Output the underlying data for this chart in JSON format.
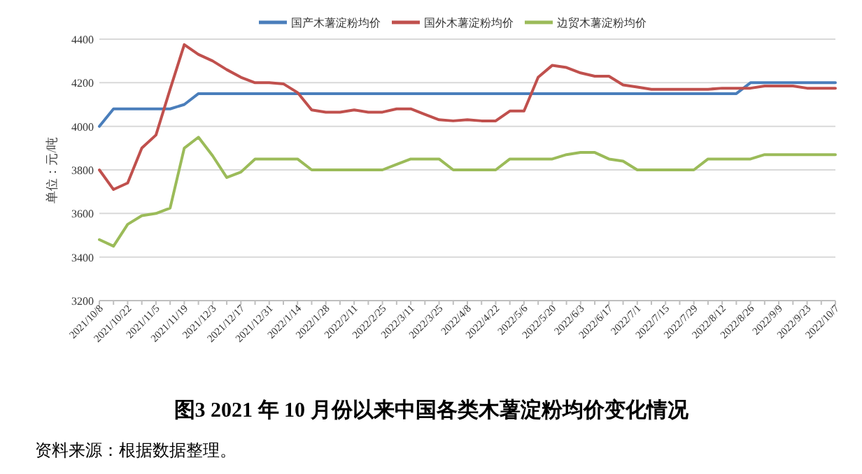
{
  "chart_data": {
    "type": "line",
    "title": "图3   2021 年 10 月份以来中国各类木薯淀粉均价变化情况",
    "ylabel": "单位：元/吨",
    "annotations": [
      "资料来源：根据数据整理。"
    ],
    "categories": [
      "2021/10/8",
      null,
      "2021/10/22",
      null,
      "2021/11/5",
      null,
      "2021/11/19",
      null,
      "2021/12/3",
      null,
      "2021/12/17",
      null,
      "2021/12/31",
      null,
      "2022/1/14",
      null,
      "2022/1/28",
      null,
      "2022/2/11",
      null,
      "2022/2/25",
      null,
      "2022/3/11",
      null,
      "2022/3/25",
      null,
      "2022/4/8",
      null,
      "2022/4/22",
      null,
      "2022/5/6",
      null,
      "2022/5/20",
      null,
      "2022/6/3",
      null,
      "2022/6/17",
      null,
      "2022/7/1",
      null,
      "2022/7/15",
      null,
      "2022/7/29",
      null,
      "2022/8/12",
      null,
      "2022/8/26",
      null,
      "2022/9/9",
      null,
      "2022/9/23",
      null,
      "2022/10/7"
    ],
    "series": [
      {
        "name": "国产木薯淀粉均价",
        "color": "#4a7ebb",
        "values": [
          4000,
          4080,
          4080,
          4080,
          4080,
          4080,
          4100,
          4150,
          4150,
          4150,
          4150,
          4150,
          4150,
          4150,
          4150,
          4150,
          4150,
          4150,
          4150,
          4150,
          4150,
          4150,
          4150,
          4150,
          4150,
          4150,
          4150,
          4150,
          4150,
          4150,
          4150,
          4150,
          4150,
          4150,
          4150,
          4150,
          4150,
          4150,
          4150,
          4150,
          4150,
          4150,
          4150,
          4150,
          4150,
          4150,
          4200,
          4200,
          4200,
          4200,
          4200,
          4200,
          4200
        ]
      },
      {
        "name": "国外木薯淀粉均价",
        "color": "#c0504d",
        "values": [
          3800,
          3710,
          3740,
          3900,
          3960,
          4170,
          4375,
          4330,
          4300,
          4260,
          4225,
          4200,
          4200,
          4195,
          4155,
          4075,
          4065,
          4065,
          4075,
          4065,
          4065,
          4080,
          4080,
          4055,
          4030,
          4025,
          4030,
          4025,
          4025,
          4070,
          4070,
          4225,
          4280,
          4270,
          4245,
          4230,
          4230,
          4190,
          4180,
          4170,
          4170,
          4170,
          4170,
          4170,
          4175,
          4175,
          4175,
          4185,
          4185,
          4185,
          4175,
          4175,
          4175
        ]
      },
      {
        "name": "边贸木薯淀粉均价",
        "color": "#9bbb59",
        "values": [
          3480,
          3450,
          3550,
          3590,
          3600,
          3625,
          3900,
          3950,
          3865,
          3765,
          3790,
          3850,
          3850,
          3850,
          3850,
          3800,
          3800,
          3800,
          3800,
          3800,
          3800,
          3825,
          3850,
          3850,
          3850,
          3800,
          3800,
          3800,
          3800,
          3850,
          3850,
          3850,
          3850,
          3870,
          3880,
          3880,
          3850,
          3840,
          3800,
          3800,
          3800,
          3800,
          3800,
          3850,
          3850,
          3850,
          3850,
          3870,
          3870,
          3870,
          3870,
          3870,
          3870
        ]
      }
    ],
    "ylim": [
      3200,
      4400
    ],
    "yticks": [
      3200,
      3400,
      3600,
      3800,
      4000,
      4200,
      4400
    ],
    "grid": "y",
    "legend": "top",
    "line_style": "solid"
  }
}
